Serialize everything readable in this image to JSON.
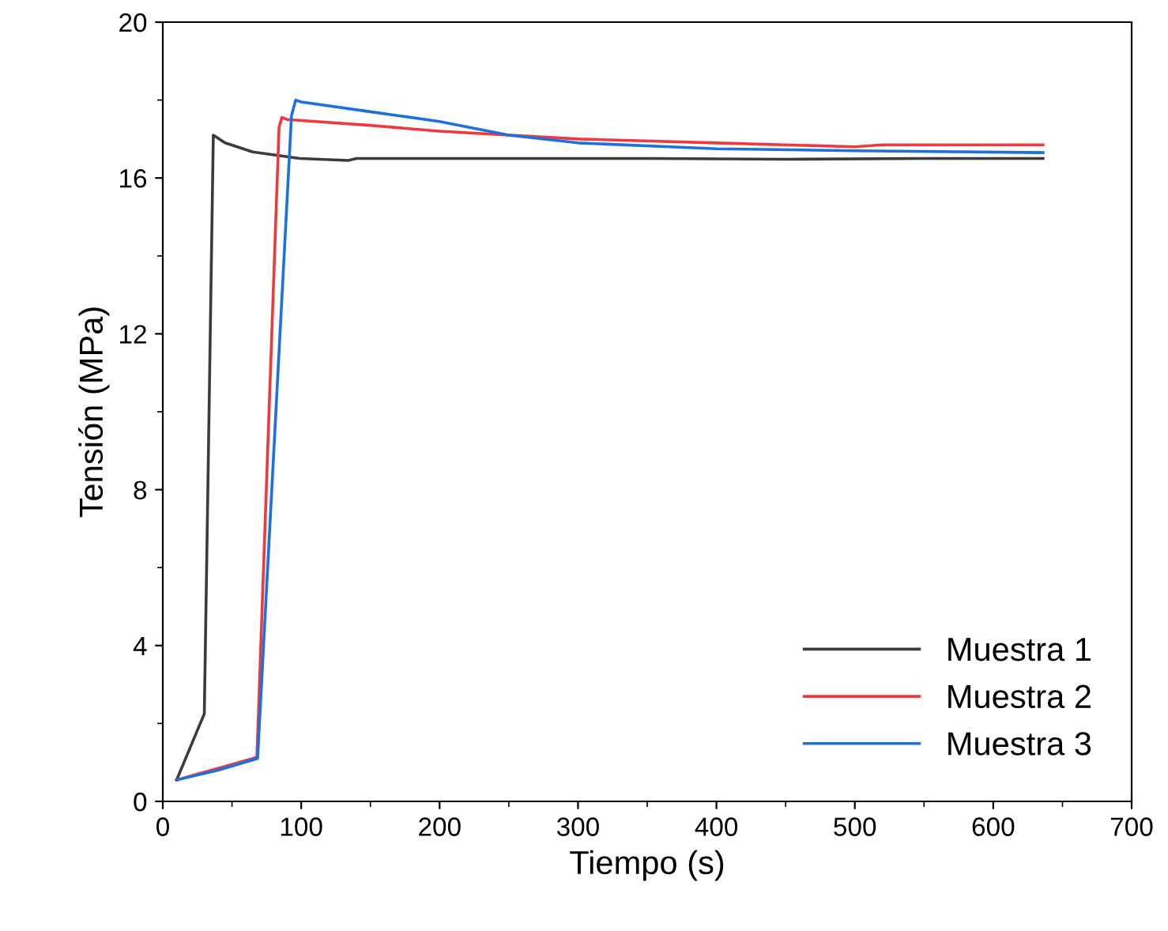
{
  "chart_data": {
    "type": "line",
    "xlabel": "Tiempo (s)",
    "ylabel": "Tensión (MPa)",
    "xlim": [
      0,
      700
    ],
    "ylim": [
      0,
      20
    ],
    "xticks": [
      0,
      100,
      200,
      300,
      400,
      500,
      600,
      700
    ],
    "yticks": [
      0,
      4,
      8,
      12,
      16,
      20
    ],
    "grid": false,
    "legend": "bottom right",
    "marker": "none",
    "line_style": "solid",
    "series": [
      {
        "name": "Muestra 1",
        "color": "#3c3c3c",
        "x": [
          10,
          30,
          33,
          36.5,
          45,
          65,
          99,
          134,
          140,
          168,
          250,
          350,
          450,
          550,
          636
        ],
        "values": [
          0.55,
          2.25,
          9,
          17.1,
          16.9,
          16.67,
          16.5,
          16.45,
          16.5,
          16.5,
          16.5,
          16.5,
          16.48,
          16.5,
          16.5
        ]
      },
      {
        "name": "Muestra 2",
        "color": "#ee3a3f",
        "x": [
          10,
          65,
          68,
          84,
          86,
          90,
          150,
          200,
          300,
          400,
          500,
          520,
          636
        ],
        "values": [
          0.55,
          1.1,
          1.15,
          17.3,
          17.55,
          17.5,
          17.35,
          17.2,
          17.0,
          16.9,
          16.8,
          16.85,
          16.85
        ]
      },
      {
        "name": "Muestra 3",
        "color": "#1c70e0",
        "x": [
          10,
          40,
          68.5,
          93,
          96,
          100,
          150,
          200,
          250,
          300,
          400,
          500,
          636
        ],
        "values": [
          0.55,
          0.8,
          1.1,
          17.6,
          18.0,
          17.95,
          17.7,
          17.45,
          17.1,
          16.9,
          16.75,
          16.7,
          16.65
        ]
      }
    ]
  }
}
